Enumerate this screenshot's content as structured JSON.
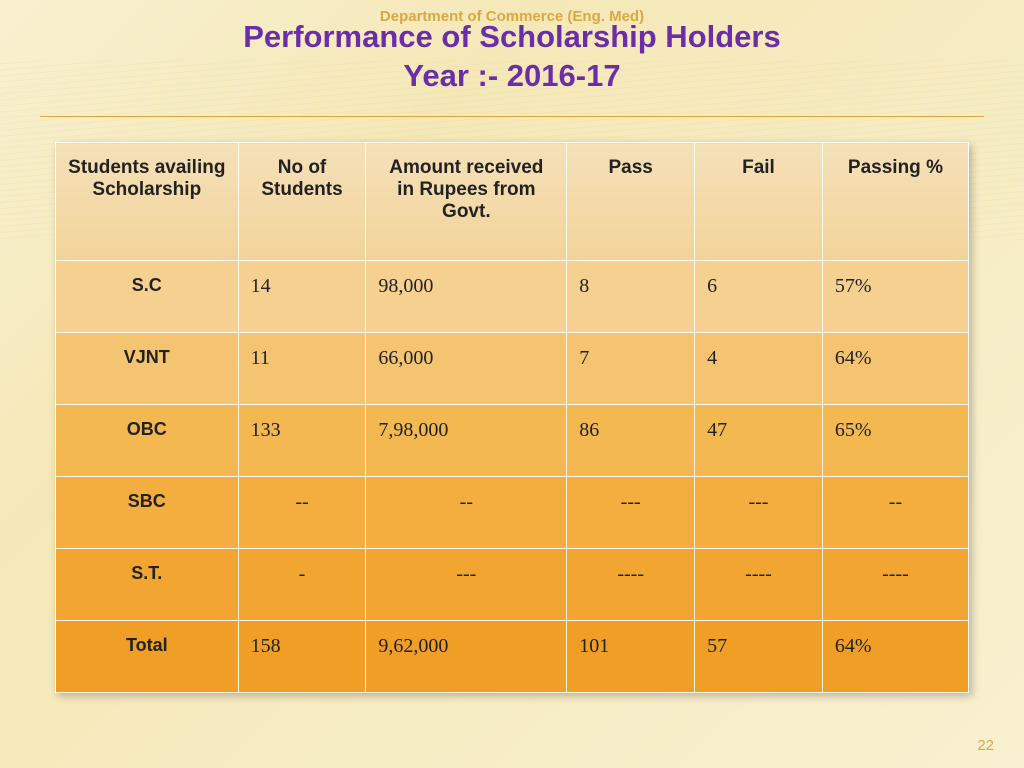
{
  "header": {
    "dept": "Department of Commerce (Eng. Med)",
    "title_line1": "Performance of Scholarship Holders",
    "title_line2": "Year :- 2016-17"
  },
  "table": {
    "columns": [
      "Students availing Scholarship",
      "No of Students",
      "Amount received in Rupees from Govt.",
      "Pass",
      "Fail",
      "Passing %"
    ],
    "rows": [
      {
        "key": "sc",
        "cells": [
          "S.C",
          "14",
          "98,000",
          "8",
          "6",
          "57%"
        ]
      },
      {
        "key": "vjnt",
        "cells": [
          "VJNT",
          "11",
          "66,000",
          "7",
          "4",
          "64%"
        ]
      },
      {
        "key": "obc",
        "cells": [
          "OBC",
          "133",
          "7,98,000",
          "86",
          "47",
          "65%"
        ]
      },
      {
        "key": "sbc",
        "cells": [
          "SBC",
          "--",
          "--",
          "---",
          "---",
          "--"
        ]
      },
      {
        "key": "st",
        "cells": [
          "S.T.",
          "-",
          "---",
          "----",
          "----",
          "----"
        ]
      },
      {
        "key": "total",
        "cells": [
          "Total",
          "158",
          "9,62,000",
          "101",
          "57",
          "64%"
        ]
      }
    ]
  },
  "page_number": "22",
  "styling": {
    "title_color": "#6a2fa8",
    "accent_color": "#d9a840",
    "row_gradient": [
      "#f5d090",
      "#f5c470",
      "#f4b850",
      "#f3ae3f",
      "#f2a530",
      "#f09e25"
    ],
    "header_bg": "#f2d49a",
    "background": "#f8f0d0"
  }
}
